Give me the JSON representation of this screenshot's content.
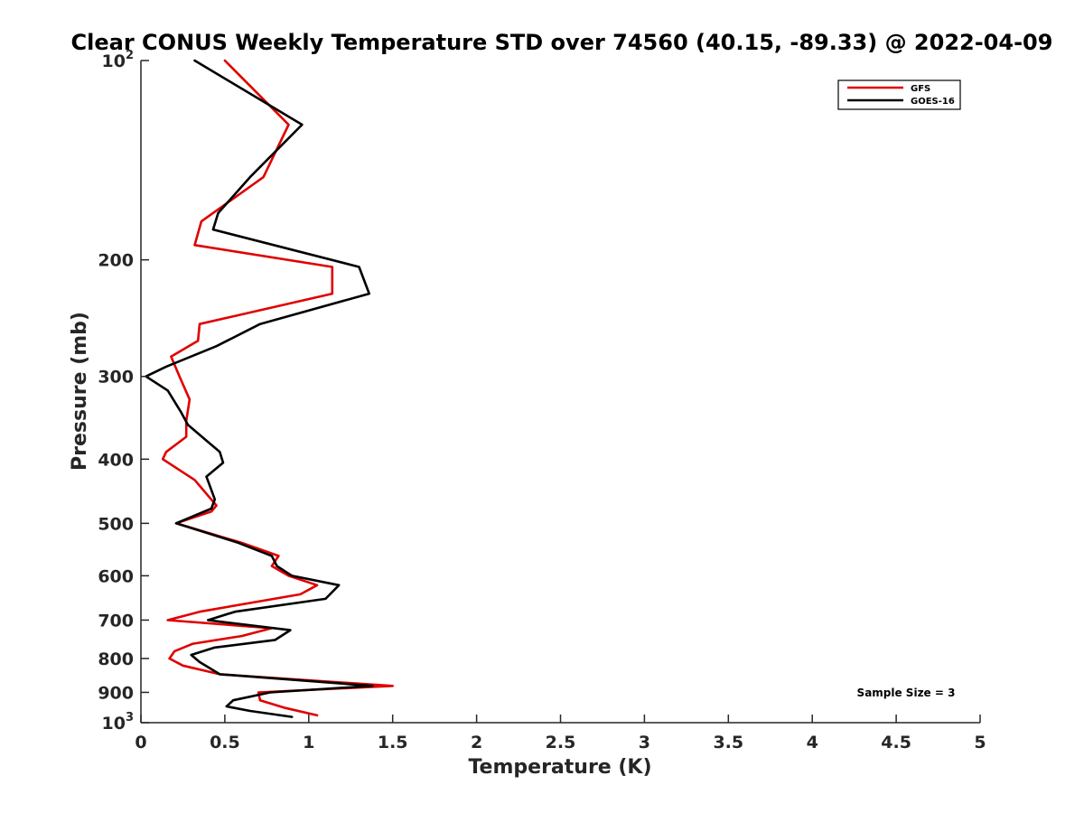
{
  "chart_data": {
    "type": "line",
    "title": "Clear CONUS Weekly Temperature STD over 74560 (40.15, -89.33) @ 2022-04-09",
    "xlabel": "Temperature (K)",
    "ylabel": "Pressure (mb)",
    "xlim": [
      0,
      5
    ],
    "ylim": [
      100,
      1000
    ],
    "y_scale": "log",
    "y_reversed": true,
    "grid": false,
    "legend_position": "top-right",
    "x_ticks": [
      0,
      0.5,
      1,
      1.5,
      2,
      2.5,
      3,
      3.5,
      4,
      4.5,
      5
    ],
    "x_tick_labels": [
      "0",
      "0.5",
      "1",
      "1.5",
      "2",
      "2.5",
      "3",
      "3.5",
      "4",
      "4.5",
      "5"
    ],
    "y_ticks": [
      100,
      200,
      300,
      400,
      500,
      600,
      700,
      800,
      900,
      1000
    ],
    "y_tick_labels": [
      {
        "base": "10",
        "exp": "2"
      },
      {
        "base": "200",
        "exp": ""
      },
      {
        "base": "300",
        "exp": ""
      },
      {
        "base": "400",
        "exp": ""
      },
      {
        "base": "500",
        "exp": ""
      },
      {
        "base": "600",
        "exp": ""
      },
      {
        "base": "700",
        "exp": ""
      },
      {
        "base": "800",
        "exp": ""
      },
      {
        "base": "900",
        "exp": ""
      },
      {
        "base": "10",
        "exp": "3"
      }
    ],
    "series": [
      {
        "name": "GFS",
        "color": "#e00000",
        "points": [
          [
            0.5,
            100
          ],
          [
            0.88,
            125
          ],
          [
            0.73,
            150
          ],
          [
            0.36,
            175
          ],
          [
            0.32,
            190
          ],
          [
            1.14,
            205
          ],
          [
            1.14,
            225
          ],
          [
            0.35,
            250
          ],
          [
            0.34,
            265
          ],
          [
            0.18,
            280
          ],
          [
            0.23,
            300
          ],
          [
            0.29,
            325
          ],
          [
            0.27,
            350
          ],
          [
            0.27,
            370
          ],
          [
            0.15,
            390
          ],
          [
            0.13,
            400
          ],
          [
            0.32,
            430
          ],
          [
            0.45,
            470
          ],
          [
            0.42,
            480
          ],
          [
            0.21,
            500
          ],
          [
            0.6,
            535
          ],
          [
            0.82,
            560
          ],
          [
            0.78,
            580
          ],
          [
            0.88,
            600
          ],
          [
            1.05,
            620
          ],
          [
            0.95,
            640
          ],
          [
            0.35,
            680
          ],
          [
            0.16,
            700
          ],
          [
            0.78,
            720
          ],
          [
            0.6,
            740
          ],
          [
            0.31,
            760
          ],
          [
            0.2,
            780
          ],
          [
            0.17,
            800
          ],
          [
            0.25,
            820
          ],
          [
            0.47,
            845
          ],
          [
            1.5,
            880
          ],
          [
            0.7,
            900
          ],
          [
            0.71,
            925
          ],
          [
            0.86,
            950
          ],
          [
            1.05,
            975
          ]
        ]
      },
      {
        "name": "GOES-16",
        "color": "#000000",
        "points": [
          [
            0.32,
            100
          ],
          [
            0.96,
            125
          ],
          [
            0.65,
            150
          ],
          [
            0.46,
            170
          ],
          [
            0.43,
            180
          ],
          [
            1.3,
            205
          ],
          [
            1.36,
            225
          ],
          [
            0.71,
            250
          ],
          [
            0.45,
            270
          ],
          [
            0.15,
            290
          ],
          [
            0.03,
            300
          ],
          [
            0.16,
            315
          ],
          [
            0.24,
            340
          ],
          [
            0.28,
            355
          ],
          [
            0.39,
            375
          ],
          [
            0.47,
            390
          ],
          [
            0.49,
            405
          ],
          [
            0.39,
            425
          ],
          [
            0.44,
            460
          ],
          [
            0.42,
            475
          ],
          [
            0.21,
            500
          ],
          [
            0.58,
            535
          ],
          [
            0.78,
            560
          ],
          [
            0.81,
            580
          ],
          [
            0.9,
            600
          ],
          [
            1.18,
            620
          ],
          [
            1.1,
            650
          ],
          [
            0.56,
            680
          ],
          [
            0.4,
            700
          ],
          [
            0.89,
            725
          ],
          [
            0.8,
            750
          ],
          [
            0.44,
            770
          ],
          [
            0.3,
            790
          ],
          [
            0.35,
            810
          ],
          [
            0.47,
            845
          ],
          [
            1.38,
            880
          ],
          [
            0.77,
            900
          ],
          [
            0.55,
            925
          ],
          [
            0.51,
            945
          ],
          [
            0.65,
            960
          ],
          [
            0.9,
            980
          ]
        ]
      }
    ],
    "annotations": [
      {
        "text": "Sample Size = 3",
        "position": "bottom-right"
      }
    ]
  }
}
